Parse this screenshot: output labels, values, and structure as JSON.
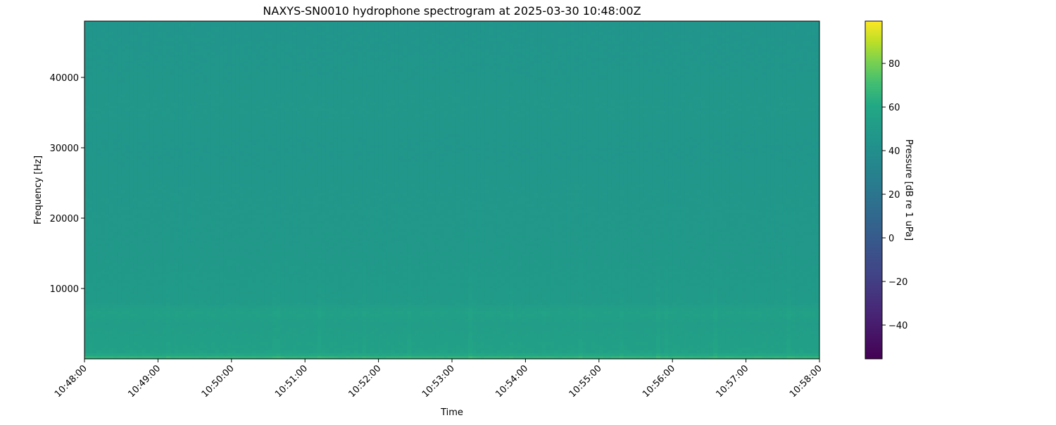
{
  "chart_data": {
    "type": "heatmap",
    "title": "NAXYS-SN0010 hydrophone spectrogram at 2025-03-30 10:48:00Z",
    "xlabel": "Time",
    "ylabel": "Frequency [Hz]",
    "colorbar_label": "Pressure [dB re 1 uPa]",
    "colormap": "viridis",
    "x_ticks": [
      "10:48:00",
      "10:49:00",
      "10:50:00",
      "10:51:00",
      "10:52:00",
      "10:53:00",
      "10:54:00",
      "10:55:00",
      "10:56:00",
      "10:57:00",
      "10:58:00"
    ],
    "xlim": [
      "10:48:00",
      "10:58:00"
    ],
    "y_ticks": [
      10000,
      20000,
      30000,
      40000
    ],
    "ylim": [
      0,
      48000
    ],
    "colorbar_ticks": [
      -40,
      -20,
      0,
      20,
      40,
      60,
      80
    ],
    "clim": [
      -55.5,
      99.4
    ],
    "frequency_profile_db": [
      {
        "freq_hz": 0,
        "db": 70
      },
      {
        "freq_hz": 300,
        "db": 62
      },
      {
        "freq_hz": 1000,
        "db": 55
      },
      {
        "freq_hz": 5000,
        "db": 52
      },
      {
        "freq_hz": 6500,
        "db": 55
      },
      {
        "freq_hz": 8000,
        "db": 50
      },
      {
        "freq_hz": 15000,
        "db": 48
      },
      {
        "freq_hz": 30000,
        "db": 46
      },
      {
        "freq_hz": 35500,
        "db": 47
      },
      {
        "freq_hz": 48000,
        "db": 45
      }
    ],
    "grid": false
  }
}
